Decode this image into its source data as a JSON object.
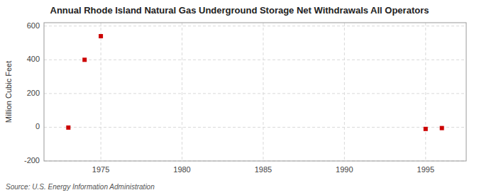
{
  "chart_data": {
    "type": "scatter",
    "title": "Annual Rhode Island Natural Gas Underground Storage Net Withdrawals All Operators",
    "ylabel": "Million Cubic Feet",
    "source": "Source: U.S. Energy Information Administration",
    "x": [
      1973,
      1974,
      1975,
      1995,
      1996
    ],
    "values": [
      -2,
      400,
      540,
      -10,
      -5
    ],
    "color": "#cc0000",
    "marker": "square",
    "xlim": [
      1971.5,
      1997.5
    ],
    "ylim": [
      -200,
      620
    ],
    "xticks": [
      1975,
      1980,
      1985,
      1990,
      1995
    ],
    "yticks": [
      -200,
      0,
      200,
      400,
      600
    ],
    "grid": true
  }
}
